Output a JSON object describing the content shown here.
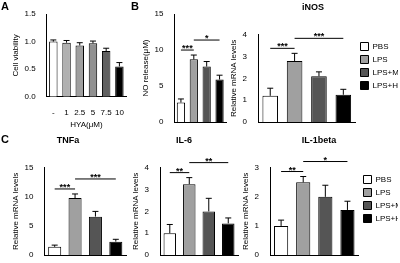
{
  "chart_data": [
    {
      "type": "bar",
      "panel": "A",
      "x_label": "HYA(μM)",
      "y_label": "Cell viability",
      "categories": [
        "-",
        "1",
        "2.5",
        "5",
        "7.5",
        "10"
      ],
      "values": [
        1.0,
        0.98,
        0.93,
        0.97,
        0.83,
        0.55
      ],
      "errors": [
        0.03,
        0.04,
        0.05,
        0.04,
        0.05,
        0.07
      ],
      "colors": [
        "#ffffff",
        "#b0b0b0",
        "#a0a0a0",
        "#909090",
        "#606060",
        "#000000"
      ],
      "ylim": [
        0,
        1.5
      ],
      "yticks": [
        {
          "value": 0,
          "label": "0.0"
        },
        {
          "value": 0.5,
          "label": "0.5"
        },
        {
          "value": 1,
          "label": "1.0"
        },
        {
          "value": 1.5,
          "label": "1.5"
        }
      ],
      "grid": false
    },
    {
      "type": "bar",
      "panel": "B",
      "y_label": "NO release(μM)",
      "categories": [
        "PBS",
        "LPS",
        "LPS+M",
        "LPS+H"
      ],
      "values": [
        2.7,
        8.7,
        7.7,
        5.9
      ],
      "errors": [
        0.5,
        0.6,
        0.7,
        0.6
      ],
      "colors": [
        "#ffffff",
        "#a0a0a0",
        "#555555",
        "#000000"
      ],
      "ylim": [
        0,
        15
      ],
      "yticks": [
        0,
        5,
        10,
        15
      ],
      "grid": false,
      "tick_labels": "y",
      "annotations": [
        {
          "text": "***",
          "from": "PBS",
          "to": "LPS"
        },
        {
          "text": "*",
          "from": "LPS",
          "to": "LPS+H"
        }
      ]
    },
    {
      "type": "bar",
      "title": "iNOS",
      "y_label": "Relative mRNA levels",
      "categories": [
        "PBS",
        "LPS",
        "LPS+M",
        "LPS+H"
      ],
      "values": [
        1.2,
        2.8,
        2.1,
        1.25
      ],
      "errors": [
        0.35,
        0.35,
        0.2,
        0.25
      ],
      "colors": [
        "#ffffff",
        "#a0a0a0",
        "#555555",
        "#000000"
      ],
      "ylim": [
        0,
        4
      ],
      "yticks": [
        0,
        1,
        2,
        3,
        4
      ],
      "grid": false,
      "tick_labels": "y",
      "legend": "right",
      "annotations": [
        {
          "text": "***",
          "from": "PBS",
          "to": "LPS"
        },
        {
          "text": "***",
          "from": "LPS",
          "to": "LPS+H"
        }
      ]
    },
    {
      "type": "bar",
      "panel": "C",
      "title": "TNFa",
      "y_label": "Relative mRNA levels",
      "categories": [
        "PBS",
        "LPS",
        "LPS+M",
        "LPS+H"
      ],
      "values": [
        1.4,
        9.8,
        6.6,
        2.3
      ],
      "errors": [
        0.3,
        0.7,
        0.9,
        0.4
      ],
      "colors": [
        "#ffffff",
        "#a0a0a0",
        "#555555",
        "#000000"
      ],
      "ylim": [
        0,
        15
      ],
      "yticks": [
        0,
        5,
        10,
        15
      ],
      "grid": false,
      "tick_labels": "y",
      "annotations": [
        {
          "text": "***",
          "from": "PBS",
          "to": "LPS"
        },
        {
          "text": "***",
          "from": "LPS",
          "to": "LPS+H"
        }
      ]
    },
    {
      "type": "bar",
      "title": "IL-6",
      "y_label": "Relative mRNA levels",
      "categories": [
        "PBS",
        "LPS",
        "LPS+M",
        "LPS+H"
      ],
      "values": [
        1.0,
        3.25,
        2.0,
        1.45
      ],
      "errors": [
        0.4,
        0.3,
        0.6,
        0.25
      ],
      "colors": [
        "#ffffff",
        "#a0a0a0",
        "#555555",
        "#000000"
      ],
      "ylim": [
        0,
        4
      ],
      "yticks": [
        0,
        1,
        2,
        3,
        4
      ],
      "grid": false,
      "tick_labels": "y",
      "annotations": [
        {
          "text": "**",
          "from": "PBS",
          "to": "LPS"
        },
        {
          "text": "**",
          "from": "LPS",
          "to": "LPS+H"
        }
      ]
    },
    {
      "type": "bar",
      "title": "IL-1beta",
      "y_label": "Relative mRNA levels",
      "categories": [
        "PBS",
        "LPS",
        "LPS+M",
        "LPS+H"
      ],
      "values": [
        1.0,
        2.5,
        2.0,
        1.55
      ],
      "errors": [
        0.2,
        0.2,
        0.4,
        0.3
      ],
      "colors": [
        "#ffffff",
        "#a0a0a0",
        "#555555",
        "#000000"
      ],
      "ylim": [
        0,
        3
      ],
      "yticks": [
        0,
        1,
        2,
        3
      ],
      "grid": false,
      "tick_labels": "y",
      "legend": "right",
      "annotations": [
        {
          "text": "**",
          "from": "PBS",
          "to": "LPS"
        },
        {
          "text": "*",
          "from": "LPS",
          "to": "LPS+H"
        }
      ]
    }
  ]
}
